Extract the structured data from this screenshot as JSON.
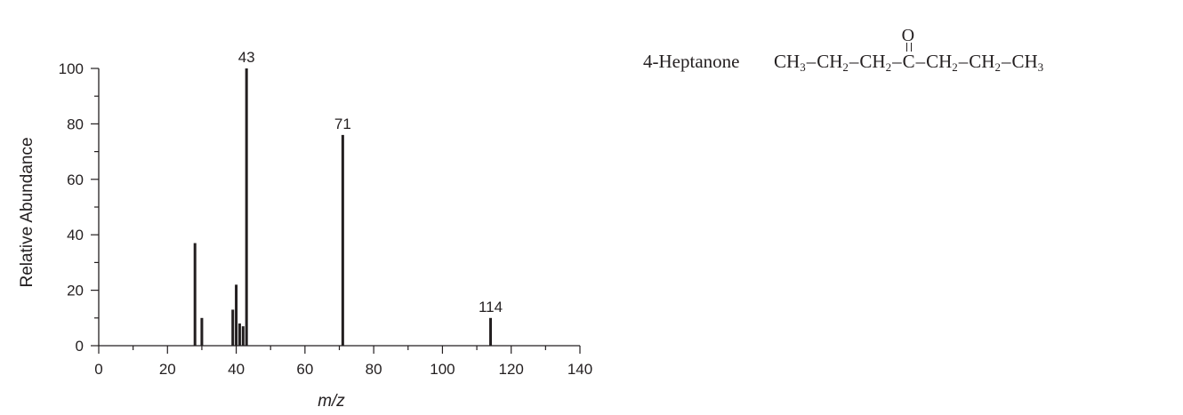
{
  "chart_data": {
    "type": "bar",
    "title": "",
    "xlabel": "m/z",
    "ylabel": "Relative Abundance",
    "xlim": [
      0,
      140
    ],
    "ylim": [
      0,
      100
    ],
    "xticks": [
      0,
      20,
      40,
      60,
      80,
      100,
      120,
      140
    ],
    "yticks": [
      0,
      20,
      40,
      60,
      80,
      100
    ],
    "grid": false,
    "series": [
      {
        "x": [
          28,
          30,
          39,
          40,
          41,
          42,
          43,
          71,
          114
        ],
        "values": [
          37,
          10,
          13,
          22,
          8,
          7,
          100,
          76,
          10
        ]
      }
    ],
    "annotations": [
      {
        "x": 43,
        "label": "43"
      },
      {
        "x": 71,
        "label": "71"
      },
      {
        "x": 114,
        "label": "114"
      }
    ]
  },
  "compound": {
    "name": "4-Heptanone",
    "structure": [
      {
        "main": "CH",
        "sub": "3"
      },
      {
        "main": "CH",
        "sub": "2"
      },
      {
        "main": "CH",
        "sub": "2"
      },
      {
        "main": "C",
        "sub": "",
        "carbonyl": true,
        "oxygen": "O"
      },
      {
        "main": "CH",
        "sub": "2"
      },
      {
        "main": "CH",
        "sub": "2"
      },
      {
        "main": "CH",
        "sub": "3"
      }
    ],
    "bond": "–"
  },
  "colors": {
    "ink": "#231f20",
    "background": "#ffffff"
  }
}
